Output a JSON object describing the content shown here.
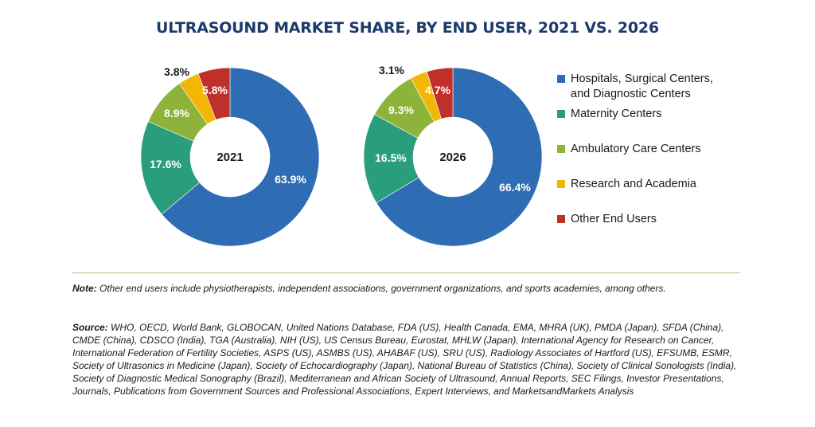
{
  "title": "ULTRASOUND MARKET SHARE, BY END USER, 2021 VS. 2026",
  "legend": [
    {
      "label": "Hospitals, Surgical Centers,\nand Diagnostic Centers",
      "color": "#2e6db4"
    },
    {
      "label": "Maternity Centers",
      "color": "#2a9d7c"
    },
    {
      "label": "Ambulatory Care Centers",
      "color": "#8db33a"
    },
    {
      "label": "Research and Academia",
      "color": "#f2b705"
    },
    {
      "label": "Other End Users",
      "color": "#c0302a"
    }
  ],
  "chart_data": [
    {
      "type": "pie",
      "center_label": "2021",
      "categories": [
        "Hospitals, Surgical Centers, and Diagnostic Centers",
        "Maternity Centers",
        "Ambulatory Care Centers",
        "Research and Academia",
        "Other End Users"
      ],
      "values": [
        63.9,
        17.6,
        8.9,
        3.8,
        5.8
      ],
      "labels": [
        "63.9%",
        "17.6%",
        "8.9%",
        "3.8%",
        "5.8%"
      ]
    },
    {
      "type": "pie",
      "center_label": "2026",
      "categories": [
        "Hospitals, Surgical Centers, and Diagnostic Centers",
        "Maternity Centers",
        "Ambulatory Care Centers",
        "Research and Academia",
        "Other End Users"
      ],
      "values": [
        66.4,
        16.5,
        9.3,
        3.1,
        4.7
      ],
      "labels": [
        "66.4%",
        "16.5%",
        "9.3%",
        "3.1%",
        "4.7%"
      ]
    }
  ],
  "note": {
    "label": "Note:",
    "text": " Other end users include physiotherapists, independent associations, government organizations, and sports academies, among others."
  },
  "source": {
    "label": "Source:",
    "text": " WHO, OECD, World Bank, GLOBOCAN, United Nations Database, FDA (US), Health Canada, EMA, MHRA (UK), PMDA (Japan), SFDA (China), CMDE (China), CDSCO (India), TGA (Australia), NIH (US), US Census Bureau, Eurostat, MHLW (Japan), International Agency for Research on Cancer, International Federation of Fertility Societies, ASPS (US), ASMBS (US), AHABAF (US), SRU (US), Radiology Associates of Hartford (US), EFSUMB, ESMR, Society of Ultrasonics in Medicine (Japan), Society of Echocardiography (Japan), National Bureau of Statistics (China), Society of Clinical Sonologists (India), Society of Diagnostic Medical Sonography (Brazil), Mediterranean and African Society of Ultrasound, Annual Reports, SEC Filings, Investor Presentations, Journals, Publications from Government Sources and Professional Associations, Expert Interviews, and MarketsandMarkets Analysis"
  }
}
